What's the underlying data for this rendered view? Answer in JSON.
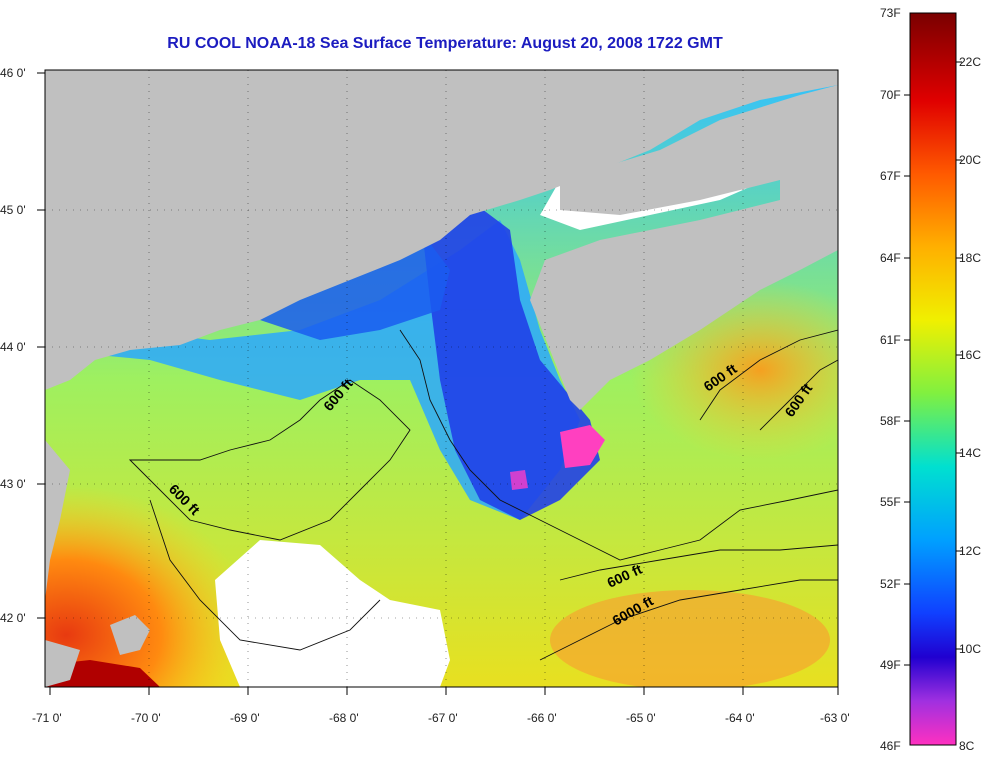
{
  "title": "RU COOL  NOAA-18  Sea Surface Temperature:  August 20, 2008 1722 GMT",
  "axes": {
    "x_ticks": [
      "-71 0'",
      "-70 0'",
      "-69 0'",
      "-68 0'",
      "-67 0'",
      "-66 0'",
      "-65 0'",
      "-64 0'",
      "-63 0'"
    ],
    "y_ticks": [
      "46 0'",
      "45 0'",
      "44 0'",
      "43 0'",
      "42 0'"
    ]
  },
  "contour_labels": [
    "600 ft",
    "600 ft",
    "600 ft",
    "600 ft",
    "600 ft",
    "6000 ft"
  ],
  "colorbar": {
    "fahrenheit": [
      "73F",
      "70F",
      "67F",
      "64F",
      "61F",
      "58F",
      "55F",
      "52F",
      "49F",
      "46F"
    ],
    "celsius": [
      "22C",
      "20C",
      "18C",
      "16C",
      "14C",
      "12C",
      "10C",
      "8C"
    ]
  },
  "colors": {
    "land": "#c0c0c0",
    "no_data": "#ffffff",
    "title": "#1c1cc0"
  }
}
